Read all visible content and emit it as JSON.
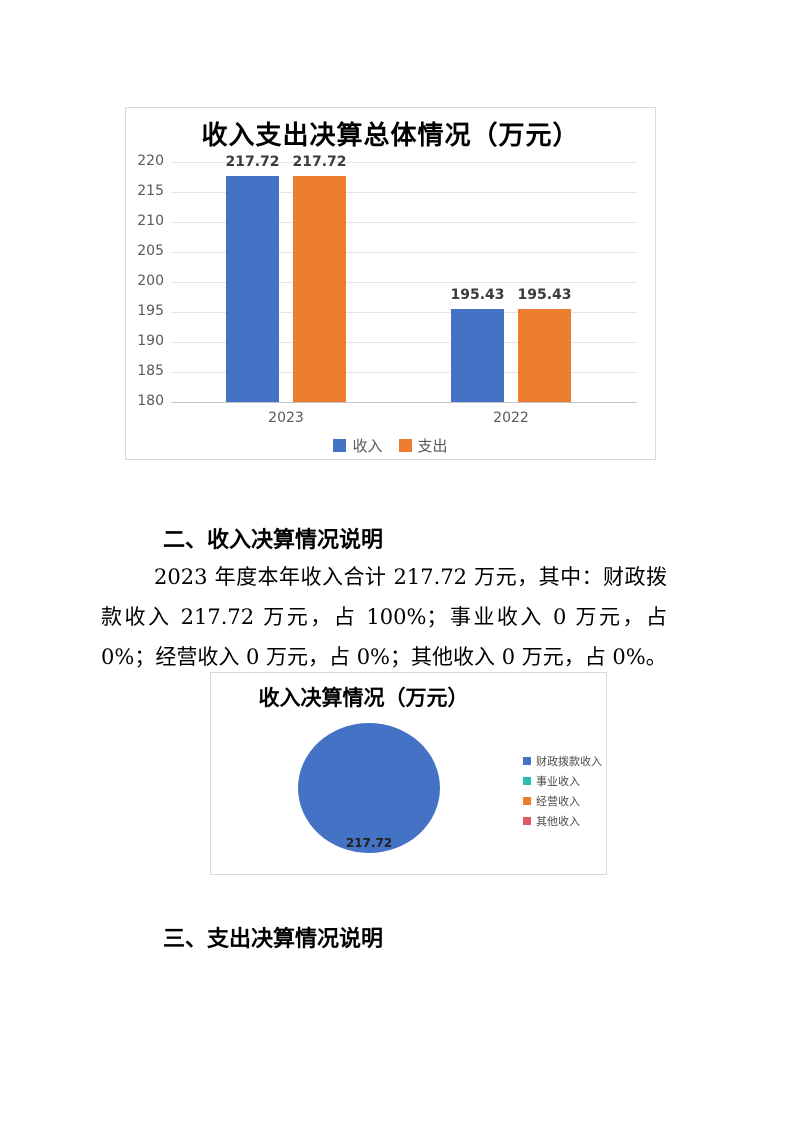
{
  "document": {
    "sections": [
      {
        "heading": "二、收入决算情况说明",
        "paragraph": "2023 年度本年收入合计 217.72 万元，其中：财政拨款收入 217.72 万元，占 100%；事业收入 0 万元，占 0%；经营收入 0 万元，占 0%；其他收入 0 万元，占 0%。"
      },
      {
        "heading": "三、支出决算情况说明"
      }
    ]
  },
  "theme": {
    "chart_border": "#d9d9d9",
    "gridline": "#e5e5e5",
    "axis_text": "#595959",
    "data_label_text": "#3b3b3b"
  },
  "chart_data": [
    {
      "type": "bar",
      "title": "收入支出决算总体情况（万元）",
      "categories": [
        "2023",
        "2022"
      ],
      "series": [
        {
          "name": "收入",
          "color": "#4472C4",
          "values": [
            217.72,
            195.43
          ]
        },
        {
          "name": "支出",
          "color": "#ED7D31",
          "values": [
            217.72,
            195.43
          ]
        }
      ],
      "ylim": [
        180,
        220
      ],
      "ytick_step": 5,
      "grid": true,
      "data_labels": true,
      "legend_position": "bottom"
    },
    {
      "type": "pie",
      "title": "收入决算情况（万元）",
      "slices": [
        {
          "label": "财政拨款收入",
          "value": 217.72,
          "color": "#4472C4"
        },
        {
          "label": "事业收入",
          "value": 0,
          "color": "#2BBDB2"
        },
        {
          "label": "经营收入",
          "value": 0,
          "color": "#ED7D31"
        },
        {
          "label": "其他收入",
          "value": 0,
          "color": "#E25762"
        }
      ],
      "data_label": "217.72",
      "legend_position": "right"
    }
  ]
}
